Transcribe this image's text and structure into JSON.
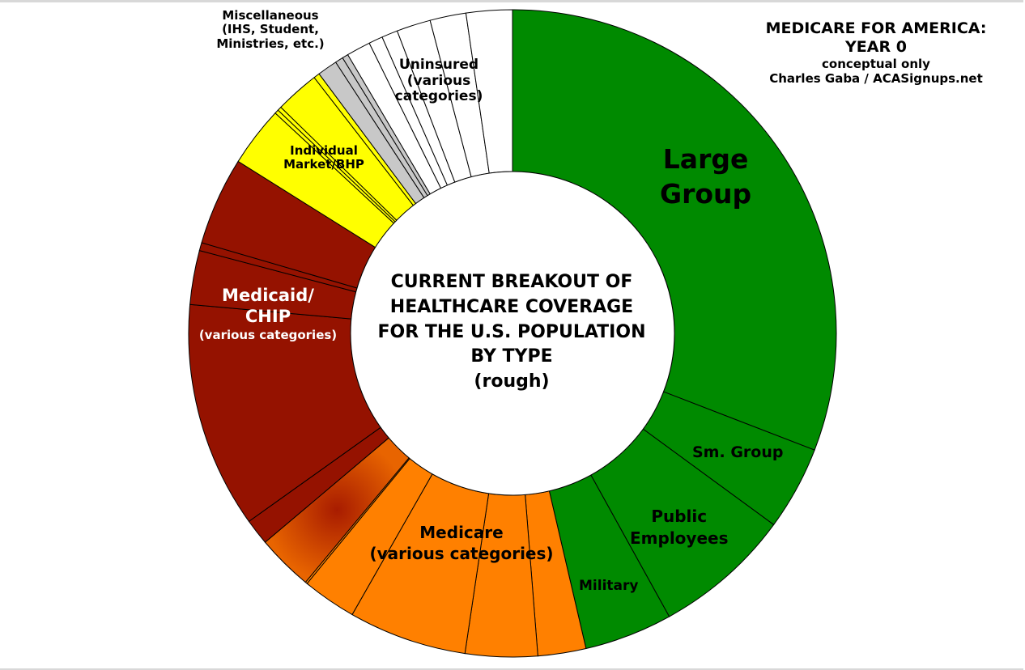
{
  "chart_data": {
    "type": "pie",
    "donut": true,
    "title": [
      "MEDICARE FOR AMERICA:",
      "YEAR 0"
    ],
    "subtitle": [
      "conceptual only",
      "Charles Gaba / ACASignups.net"
    ],
    "center_text": [
      "CURRENT BREAKOUT OF",
      "HEALTHCARE COVERAGE",
      "FOR THE U.S. POPULATION",
      "BY TYPE",
      "(rough)"
    ],
    "start_angle": "top, clockwise",
    "colors": {
      "employer": "#008a00",
      "medicare": "#ff8000",
      "medicare_dark": "#b83a00",
      "medicaid": "#951200",
      "individual": "#ffff00",
      "misc": "#c8c8c8",
      "uninsured": "#ffffff"
    },
    "groups": [
      {
        "key": "employer",
        "label": [
          "Large",
          "Group"
        ],
        "slices": [
          30.9
        ]
      },
      {
        "key": "employer",
        "label": [
          "Sm. Group"
        ],
        "slices": [
          4.2
        ]
      },
      {
        "key": "employer",
        "label": [
          "Public",
          "Employees"
        ],
        "slices": [
          6.9
        ]
      },
      {
        "key": "employer",
        "label": [
          "Military"
        ],
        "slices": [
          4.4
        ]
      },
      {
        "key": "medicare",
        "label": [
          "Medicare",
          "(various categories)"
        ],
        "slices": [
          2.4,
          3.6,
          5.9,
          2.7,
          0.1,
          2.8
        ],
        "gradient_last": true
      },
      {
        "key": "medicaid",
        "label": [
          "Medicaid/",
          "CHIP",
          "(various categories)"
        ],
        "slices": [
          1.3,
          11.3,
          2.7,
          0.4,
          4.4
        ]
      },
      {
        "key": "individual",
        "label": [
          "Individual",
          "Market/BHP"
        ],
        "slices": [
          3.0,
          0.2,
          0.2,
          2.2,
          0.3
        ]
      },
      {
        "key": "misc",
        "label": [
          "Miscellaneous",
          "(IHS, Student,",
          "Ministries, etc.)"
        ],
        "slices": [
          1.0,
          0.4,
          0.3
        ]
      },
      {
        "key": "uninsured",
        "label": [
          "Uninsured",
          "(various",
          "categories)"
        ],
        "slices": [
          1.2,
          0.7,
          0.8,
          1.7,
          1.8,
          2.3
        ]
      }
    ]
  }
}
